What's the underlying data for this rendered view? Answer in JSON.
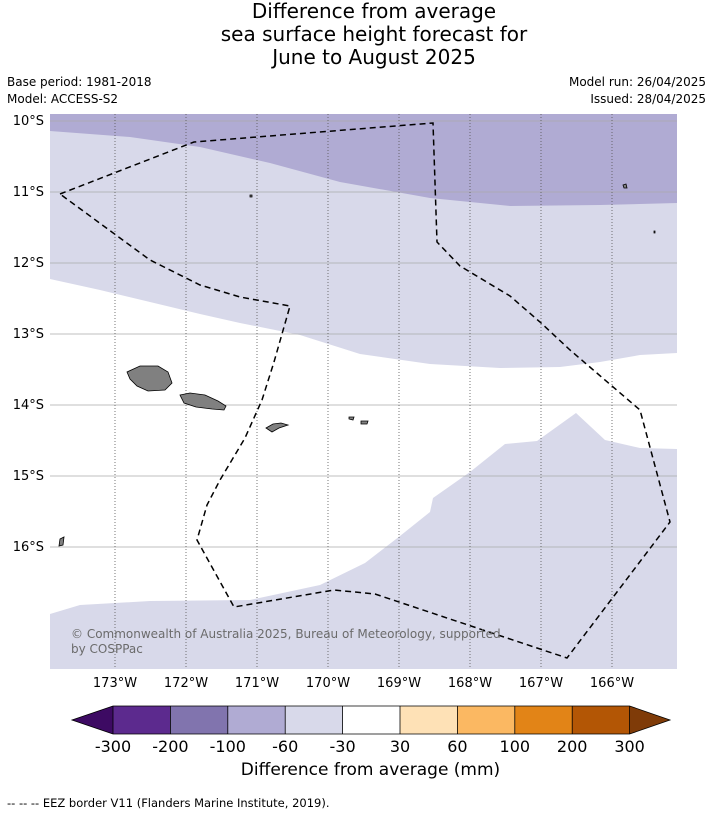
{
  "title": {
    "line1": "Difference from average",
    "line2": "sea surface height forecast for",
    "line3": "June to August 2025"
  },
  "info": {
    "base_period": "Base period: 1981-2018",
    "model": "Model: ACCESS-S2",
    "model_run": "Model run: 26/04/2025",
    "issued": "Issued: 28/04/2025"
  },
  "map": {
    "lat_labels": [
      "10°S",
      "11°S",
      "12°S",
      "13°S",
      "14°S",
      "15°S",
      "16°S"
    ],
    "lon_labels": [
      "173°W",
      "172°W",
      "171°W",
      "170°W",
      "169°W",
      "168°W",
      "167°W",
      "166°W"
    ],
    "copyright_line1": "© Commonwealth of Australia 2025, Bureau of Meteorology, supported",
    "copyright_line2": "by COSPPac",
    "colors": {
      "band_-100_-60": "#b0abd3",
      "band_-60_-30": "#d8d9ea",
      "land": "#808080",
      "grid": "#aaaaaa",
      "eez": "#000000"
    }
  },
  "legend": {
    "ticks": [
      "-300",
      "-200",
      "-100",
      "-60",
      "-30",
      "30",
      "60",
      "100",
      "200",
      "300"
    ],
    "colors": [
      "#3d0a63",
      "#5c2a8e",
      "#8174ae",
      "#b0abd3",
      "#d8d9ea",
      "#ffffff",
      "#fee1b6",
      "#fbb862",
      "#e28417",
      "#b35605",
      "#7f3b08"
    ],
    "label": "Difference from average (mm)"
  },
  "footer": "--  --  -- EEZ border V11 (Flanders Marine Institute, 2019)."
}
